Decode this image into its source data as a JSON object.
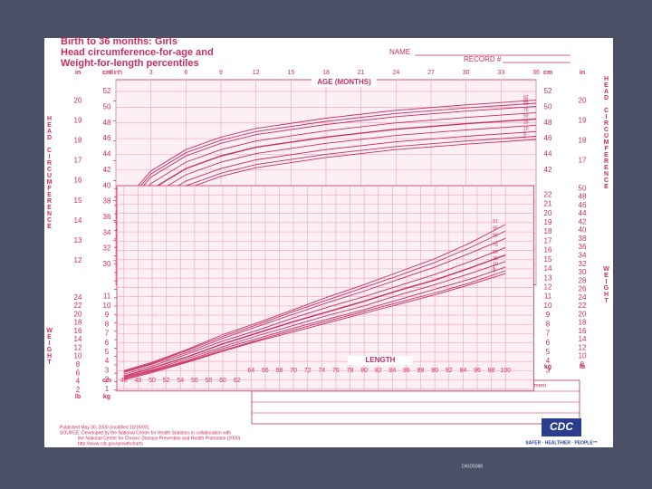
{
  "header": {
    "title": "Birth to 36 months: Girls",
    "subtitle_lines": [
      "Head circumference-for-age and",
      "Weight-for-length percentiles"
    ],
    "name_label": "NAME",
    "record_label": "RECORD #"
  },
  "chart_data": [
    {
      "type": "line",
      "x_label": "AGE (MONTHS)",
      "y_label": "HEAD CIRCUMFERENCE",
      "y_unit": "cm",
      "y2_unit": "in",
      "x": [
        0,
        3,
        6,
        9,
        12,
        18,
        24,
        30,
        36
      ],
      "xlim": [
        0,
        36
      ],
      "xticks": [
        {
          "value": 0,
          "label": "Birth"
        },
        3,
        6,
        9,
        12,
        15,
        18,
        21,
        24,
        27,
        30,
        33,
        36
      ],
      "ylim": [
        27.4,
        53.5
      ],
      "yticks": [
        30,
        32,
        34,
        36,
        38,
        40,
        42,
        44,
        46,
        48,
        50,
        52
      ],
      "y2lim": [
        10.79,
        21.06
      ],
      "y2ticks": [
        12,
        13,
        14,
        15,
        16,
        17,
        18,
        19,
        20
      ],
      "series": [
        {
          "name": "97",
          "color": "#c92d5f",
          "values": [
            36.7,
            41.9,
            44.6,
            46.2,
            47.3,
            48.6,
            49.6,
            50.3,
            50.9
          ]
        },
        {
          "name": "95",
          "color": "#c92d5f",
          "values": [
            36.3,
            41.5,
            44.2,
            45.8,
            46.9,
            48.2,
            49.2,
            49.9,
            50.5
          ]
        },
        {
          "name": "90",
          "color": "#c92d5f",
          "values": [
            35.9,
            41.1,
            43.8,
            45.4,
            46.5,
            47.8,
            48.8,
            49.5,
            50.1
          ]
        },
        {
          "name": "75",
          "color": "#c92d5f",
          "values": [
            35.1,
            40.3,
            43.0,
            44.6,
            45.7,
            47.0,
            48.0,
            48.7,
            49.3
          ]
        },
        {
          "name": "50",
          "color": "#c92d5f",
          "values": [
            34.3,
            39.5,
            42.2,
            43.8,
            44.9,
            46.2,
            47.2,
            47.9,
            48.5
          ]
        },
        {
          "name": "25",
          "color": "#c92d5f",
          "values": [
            33.5,
            38.7,
            41.4,
            43.0,
            44.1,
            45.4,
            46.4,
            47.1,
            47.7
          ]
        },
        {
          "name": "10",
          "color": "#c92d5f",
          "values": [
            32.7,
            37.9,
            40.6,
            42.2,
            43.3,
            44.6,
            45.6,
            46.3,
            46.9
          ]
        },
        {
          "name": "5",
          "color": "#c92d5f",
          "values": [
            32.1,
            37.3,
            40.0,
            41.6,
            42.7,
            44.0,
            45.0,
            45.7,
            46.3
          ]
        },
        {
          "name": "3",
          "color": "#c92d5f",
          "values": [
            31.7,
            36.9,
            39.6,
            41.2,
            42.3,
            43.6,
            44.6,
            45.3,
            45.9
          ]
        }
      ]
    },
    {
      "type": "line",
      "x_label": "LENGTH",
      "x_unit": "cm",
      "y_label": "WEIGHT",
      "y_unit": "kg",
      "y2_unit": "lb",
      "x": [
        46,
        50,
        55,
        60,
        65,
        70,
        75,
        80,
        85,
        90,
        95,
        100
      ],
      "xlim": [
        45,
        104
      ],
      "xticks": [
        46,
        48,
        50,
        52,
        54,
        56,
        58,
        60,
        62,
        64,
        66,
        68,
        70,
        72,
        74,
        76,
        78,
        80,
        82,
        84,
        86,
        88,
        90,
        92,
        94,
        96,
        98,
        100
      ],
      "ylim": [
        0.8,
        23
      ],
      "yticks": [
        1,
        2,
        3,
        4,
        5,
        6,
        7,
        8,
        9,
        10,
        11,
        12,
        13,
        14,
        15,
        16,
        17,
        18,
        19,
        20,
        21,
        22
      ],
      "y2lim": [
        1.76,
        50.7
      ],
      "y2ticks": [
        2,
        4,
        6,
        8,
        10,
        12,
        14,
        16,
        18,
        20,
        22,
        24,
        26,
        28,
        30,
        32,
        34,
        36,
        38,
        40,
        42,
        44,
        46,
        48,
        50
      ],
      "series": [
        {
          "name": "97",
          "color": "#c92d5f",
          "values": [
            3.0,
            3.9,
            5.3,
            6.9,
            8.2,
            9.6,
            11.0,
            12.3,
            13.7,
            15.1,
            16.8,
            18.8
          ]
        },
        {
          "name": "95",
          "color": "#c92d5f",
          "values": [
            2.9,
            3.8,
            5.2,
            6.7,
            8.0,
            9.4,
            10.7,
            12.0,
            13.3,
            14.7,
            16.3,
            18.1
          ]
        },
        {
          "name": "90",
          "color": "#c92d5f",
          "values": [
            2.8,
            3.7,
            5.0,
            6.5,
            7.8,
            9.1,
            10.4,
            11.6,
            12.9,
            14.2,
            15.7,
            17.3
          ]
        },
        {
          "name": "75",
          "color": "#c92d5f",
          "values": [
            2.6,
            3.5,
            4.8,
            6.2,
            7.4,
            8.7,
            9.9,
            11.0,
            12.2,
            13.4,
            14.8,
            16.3
          ]
        },
        {
          "name": "50",
          "color": "#c92d5f",
          "values": [
            2.4,
            3.3,
            4.5,
            5.9,
            7.1,
            8.3,
            9.4,
            10.5,
            11.7,
            12.8,
            14.1,
            15.5
          ]
        },
        {
          "name": "25",
          "color": "#c92d5f",
          "values": [
            2.3,
            3.1,
            4.3,
            5.6,
            6.8,
            7.9,
            9.0,
            10.0,
            11.2,
            12.3,
            13.5,
            14.8
          ]
        },
        {
          "name": "10",
          "color": "#c92d5f",
          "values": [
            2.2,
            3.0,
            4.1,
            5.4,
            6.5,
            7.6,
            8.6,
            9.6,
            10.7,
            11.8,
            12.9,
            14.2
          ]
        },
        {
          "name": "5",
          "color": "#c92d5f",
          "values": [
            2.1,
            2.9,
            4.0,
            5.2,
            6.3,
            7.4,
            8.4,
            9.4,
            10.4,
            11.4,
            12.5,
            13.8
          ]
        },
        {
          "name": "3",
          "color": "#c92d5f",
          "values": [
            2.0,
            2.8,
            3.9,
            5.1,
            6.2,
            7.2,
            8.2,
            9.2,
            10.2,
            11.2,
            12.3,
            13.5
          ]
        }
      ]
    }
  ],
  "table": {
    "columns": [
      "Date",
      "Age",
      "Weight",
      "Length",
      "Head Circ.",
      "Comment"
    ]
  },
  "footer": {
    "lines": [
      "Published May 30, 2000 (modified 10/16/00).",
      "SOURCE: Developed by the National Center for Health Statistics in collaboration with",
      "the National Center for Chronic Disease Prevention and Health Promotion (2000).",
      "http://www.cdc.gov/growthcharts"
    ],
    "logo": "CDC",
    "tagline": "SAFER · HEALTHIER · PEOPLE™"
  },
  "slide_footer": "DKID5088"
}
